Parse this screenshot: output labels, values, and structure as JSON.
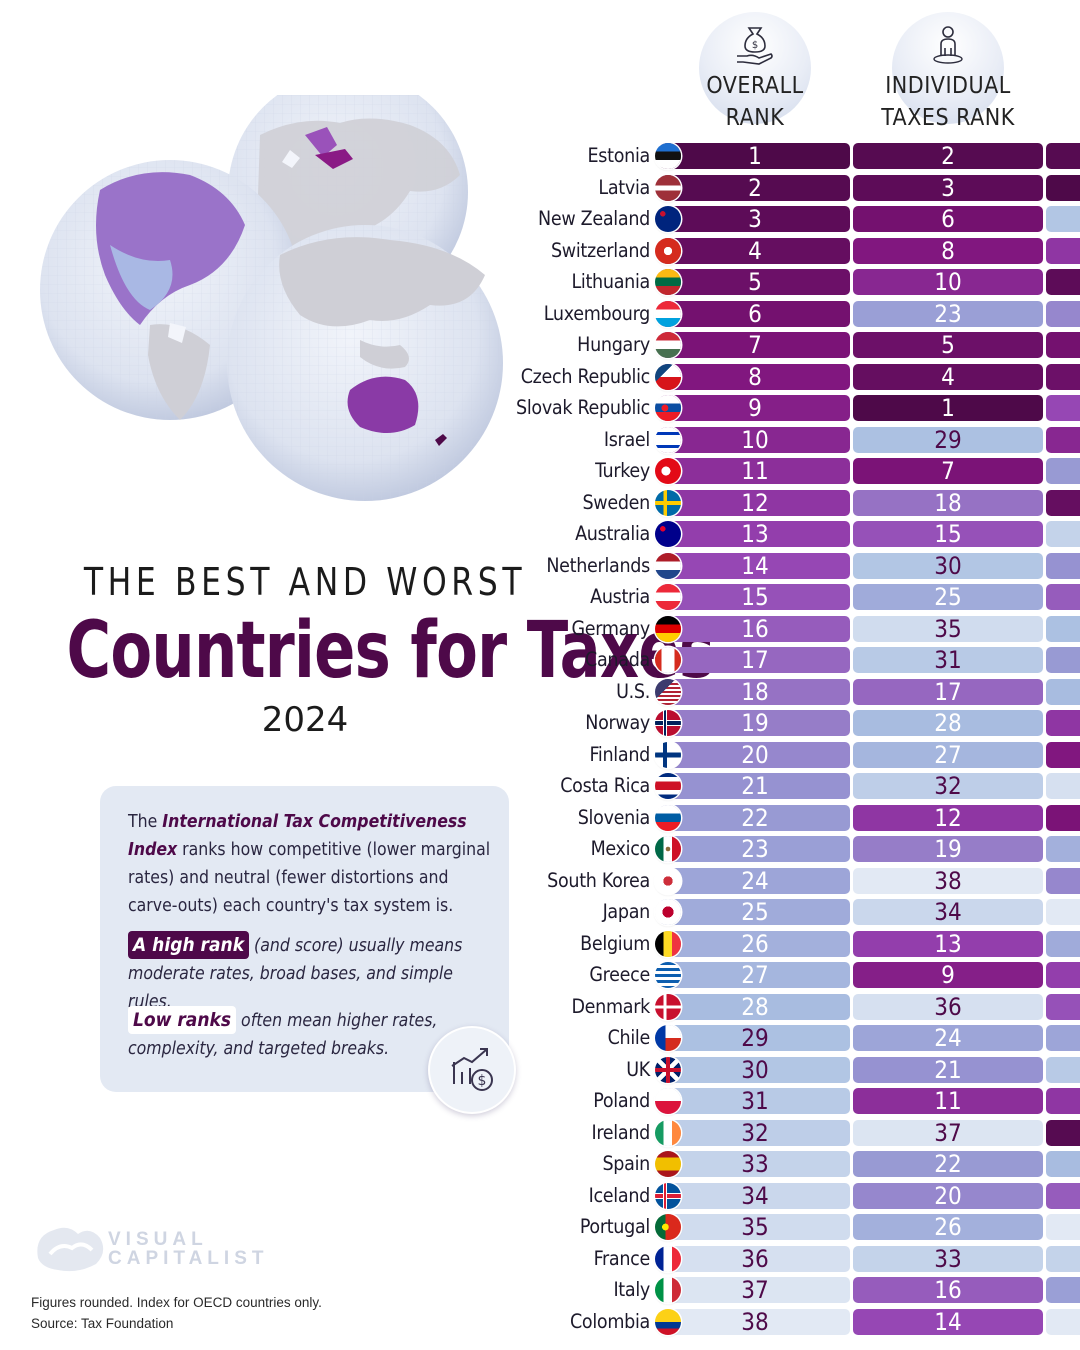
{
  "title": {
    "kicker": "THE BEST AND WORST",
    "main": "Countries for Taxes",
    "year": "2024"
  },
  "info": {
    "p1_a": "The ",
    "p1_b": "International Tax Competitiveness Index",
    "p1_c": " ranks how competitive (lower marginal rates) and neutral (fewer distortions and carve-outs) each country's tax system is.",
    "p2_tag": "A high rank",
    "p2_rest": " (and score) usually means moderate rates, broad bases, and simple rules.",
    "p3_tag": "Low ranks",
    "p3_rest": " often mean higher rates, complexity, and targeted breaks."
  },
  "logo": {
    "line1": "VISUAL",
    "line2": "CAPITALIST"
  },
  "footer": {
    "note": "Figures rounded. Index for OECD countries only.",
    "source": "Source: Tax Foundation"
  },
  "icons": {
    "overall": "hand-money-bag-icon",
    "individual": "person-icon",
    "card": "chart-dollar-icon"
  },
  "colors": {
    "rank_scale": [
      "#4e0949",
      "#8a1a85",
      "#9a52ba",
      "#9aa9d6",
      "#e2e9f4"
    ],
    "title": "#4e0949"
  },
  "chart_data": {
    "type": "table",
    "columns": [
      {
        "key": "overall",
        "label_1": "OVERALL",
        "label_2": "RANK"
      },
      {
        "key": "individual",
        "label_1": "INDIVIDUAL",
        "label_2": "TAXES RANK"
      }
    ],
    "rows": [
      {
        "country": "Estonia",
        "flag": "ee",
        "overall": 1,
        "individual": 2
      },
      {
        "country": "Latvia",
        "flag": "lv",
        "overall": 2,
        "individual": 3
      },
      {
        "country": "New Zealand",
        "flag": "nz",
        "overall": 3,
        "individual": 6
      },
      {
        "country": "Switzerland",
        "flag": "ch",
        "overall": 4,
        "individual": 8
      },
      {
        "country": "Lithuania",
        "flag": "lt",
        "overall": 5,
        "individual": 10
      },
      {
        "country": "Luxembourg",
        "flag": "lu",
        "overall": 6,
        "individual": 23
      },
      {
        "country": "Hungary",
        "flag": "hu",
        "overall": 7,
        "individual": 5
      },
      {
        "country": "Czech Republic",
        "flag": "cz",
        "overall": 8,
        "individual": 4
      },
      {
        "country": "Slovak Republic",
        "flag": "sk",
        "overall": 9,
        "individual": 1
      },
      {
        "country": "Israel",
        "flag": "il",
        "overall": 10,
        "individual": 29
      },
      {
        "country": "Turkey",
        "flag": "tr",
        "overall": 11,
        "individual": 7
      },
      {
        "country": "Sweden",
        "flag": "se",
        "overall": 12,
        "individual": 18
      },
      {
        "country": "Australia",
        "flag": "au",
        "overall": 13,
        "individual": 15
      },
      {
        "country": "Netherlands",
        "flag": "nl",
        "overall": 14,
        "individual": 30
      },
      {
        "country": "Austria",
        "flag": "at",
        "overall": 15,
        "individual": 25
      },
      {
        "country": "Germany",
        "flag": "de",
        "overall": 16,
        "individual": 35
      },
      {
        "country": "Canada",
        "flag": "ca",
        "overall": 17,
        "individual": 31
      },
      {
        "country": "U.S.",
        "flag": "us",
        "overall": 18,
        "individual": 17
      },
      {
        "country": "Norway",
        "flag": "no",
        "overall": 19,
        "individual": 28
      },
      {
        "country": "Finland",
        "flag": "fi",
        "overall": 20,
        "individual": 27
      },
      {
        "country": "Costa Rica",
        "flag": "cr",
        "overall": 21,
        "individual": 32
      },
      {
        "country": "Slovenia",
        "flag": "si",
        "overall": 22,
        "individual": 12
      },
      {
        "country": "Mexico",
        "flag": "mx",
        "overall": 23,
        "individual": 19
      },
      {
        "country": "South Korea",
        "flag": "kr",
        "overall": 24,
        "individual": 38
      },
      {
        "country": "Japan",
        "flag": "jp",
        "overall": 25,
        "individual": 34
      },
      {
        "country": "Belgium",
        "flag": "be",
        "overall": 26,
        "individual": 13
      },
      {
        "country": "Greece",
        "flag": "gr",
        "overall": 27,
        "individual": 9
      },
      {
        "country": "Denmark",
        "flag": "dk",
        "overall": 28,
        "individual": 36
      },
      {
        "country": "Chile",
        "flag": "cl",
        "overall": 29,
        "individual": 24
      },
      {
        "country": "UK",
        "flag": "gb",
        "overall": 30,
        "individual": 21
      },
      {
        "country": "Poland",
        "flag": "pl",
        "overall": 31,
        "individual": 11
      },
      {
        "country": "Ireland",
        "flag": "ie",
        "overall": 32,
        "individual": 37
      },
      {
        "country": "Spain",
        "flag": "es",
        "overall": 33,
        "individual": 22
      },
      {
        "country": "Iceland",
        "flag": "is",
        "overall": 34,
        "individual": 20
      },
      {
        "country": "Portugal",
        "flag": "pt",
        "overall": 35,
        "individual": 26
      },
      {
        "country": "France",
        "flag": "fr",
        "overall": 36,
        "individual": 33
      },
      {
        "country": "Italy",
        "flag": "it",
        "overall": 37,
        "individual": 16
      },
      {
        "country": "Colombia",
        "flag": "co",
        "overall": 38,
        "individual": 14
      }
    ]
  }
}
